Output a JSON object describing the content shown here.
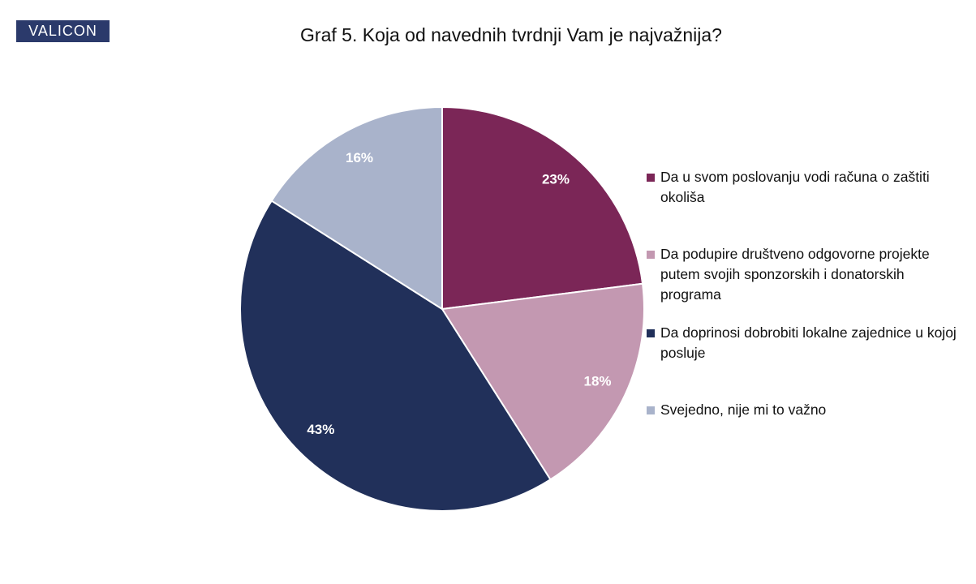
{
  "brand": "VALICON",
  "chart_data": {
    "type": "pie",
    "title": "Graf 5. Koja od navednih tvrdnji Vam je najvažnija?",
    "categories": [
      "Da u svom poslovanju vodi računa o zaštiti okoliša",
      "Da podupire društveno odgovorne projekte putem svojih sponzorskih i donatorskih programa",
      "Da doprinosi dobrobiti lokalne zajednice u kojoj posluje",
      "Svejedno, nije mi to važno"
    ],
    "values": [
      23,
      18,
      43,
      16
    ],
    "value_labels": [
      "23%",
      "18%",
      "43%",
      "16%"
    ],
    "colors": [
      "#7b2657",
      "#c398b1",
      "#21305a",
      "#a9b3cb"
    ],
    "legend": "right"
  }
}
